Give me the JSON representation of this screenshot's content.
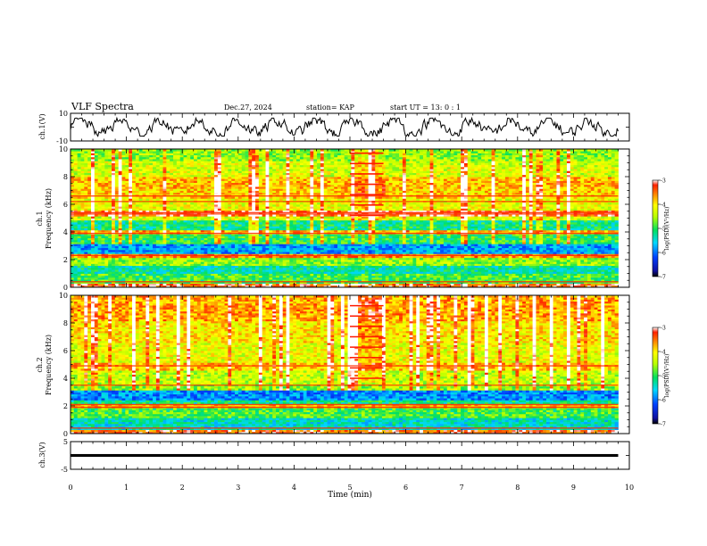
{
  "header": {
    "title": "VLF Spectra",
    "date": "Dec.27, 2024",
    "station": "station= KAP",
    "start": "start  UT  =   13: 0  : 1"
  },
  "chart_data": [
    {
      "type": "line",
      "name": "ch1-waveform",
      "ylabel": "ch.1(V)",
      "ylim": [
        -10,
        10
      ],
      "yticks": [
        "10",
        "-10"
      ],
      "xlim": [
        0,
        10
      ],
      "data_extent_min": [
        0,
        9.8
      ],
      "description_series": "noisy signal oscillating roughly between -6 and 6 V"
    },
    {
      "type": "heatmap",
      "name": "ch1-spectrogram",
      "ylabel_line1": "ch.1",
      "ylabel_line2": "Frequency (kHz)",
      "ylim": [
        0,
        10
      ],
      "yticks": [
        "0",
        "2",
        "4",
        "6",
        "8",
        "10"
      ],
      "xlim": [
        0,
        10
      ],
      "data_extent_min": [
        0,
        9.8
      ],
      "colorbar": {
        "label": "log(PSD)(V²/Hz)",
        "range": [
          -7,
          -3
        ],
        "ticks": [
          "-3",
          "-4",
          "-5",
          "-6",
          "-7"
        ]
      },
      "bands": [
        {
          "f0": 0,
          "f1": 0.3,
          "level": -3.3
        },
        {
          "f0": 0.3,
          "f1": 1.0,
          "level": -4.9
        },
        {
          "f0": 1.0,
          "f1": 1.6,
          "level": -5.3
        },
        {
          "f0": 1.6,
          "f1": 2.2,
          "level": -4.6
        },
        {
          "f0": 2.2,
          "f1": 2.4,
          "level": -3.6
        },
        {
          "f0": 2.4,
          "f1": 3.2,
          "level": -5.8
        },
        {
          "f0": 3.2,
          "f1": 3.8,
          "level": -5.0
        },
        {
          "f0": 3.8,
          "f1": 4.1,
          "level": -3.7
        },
        {
          "f0": 4.1,
          "f1": 4.8,
          "level": -5.2
        },
        {
          "f0": 4.8,
          "f1": 5.2,
          "level": -4.3
        },
        {
          "f0": 5.2,
          "f1": 5.6,
          "level": -3.3
        },
        {
          "f0": 5.6,
          "f1": 6.4,
          "level": -4.2
        },
        {
          "f0": 6.4,
          "f1": 7.2,
          "level": -3.9
        },
        {
          "f0": 7.2,
          "f1": 8.0,
          "level": -3.8
        },
        {
          "f0": 8.0,
          "f1": 9.2,
          "level": -4.3
        },
        {
          "f0": 9.2,
          "f1": 10.0,
          "level": -4.6
        }
      ],
      "lines_khz": [
        5.4,
        5.3,
        3.9,
        2.3,
        0.4,
        6.2,
        6.6
      ],
      "burst": {
        "t0": 5.0,
        "t1": 5.6,
        "f0": 4.8,
        "f1": 10
      }
    },
    {
      "type": "heatmap",
      "name": "ch2-spectrogram",
      "ylabel_line1": "ch.2",
      "ylabel_line2": "Frequency (kHz)",
      "ylim": [
        0,
        10
      ],
      "yticks": [
        "0",
        "2",
        "4",
        "6",
        "8",
        "10"
      ],
      "xlim": [
        0,
        10
      ],
      "data_extent_min": [
        0,
        9.8
      ],
      "colorbar": {
        "label": "log(PSD)(V²/Hz)",
        "range": [
          -7,
          -3
        ],
        "ticks": [
          "-3",
          "-4",
          "-5",
          "-6",
          "-7"
        ]
      },
      "bands": [
        {
          "f0": 0,
          "f1": 0.3,
          "level": -3.4
        },
        {
          "f0": 0.3,
          "f1": 1.2,
          "level": -5.4
        },
        {
          "f0": 1.2,
          "f1": 1.8,
          "level": -4.9
        },
        {
          "f0": 1.8,
          "f1": 2.1,
          "level": -3.8
        },
        {
          "f0": 2.1,
          "f1": 2.5,
          "level": -5.2
        },
        {
          "f0": 2.5,
          "f1": 3.2,
          "level": -5.9
        },
        {
          "f0": 3.2,
          "f1": 3.6,
          "level": -4.6
        },
        {
          "f0": 3.6,
          "f1": 4.6,
          "level": -4.4
        },
        {
          "f0": 4.6,
          "f1": 5.2,
          "level": -3.8
        },
        {
          "f0": 5.2,
          "f1": 6.6,
          "level": -4.2
        },
        {
          "f0": 6.6,
          "f1": 8.2,
          "level": -4.0
        },
        {
          "f0": 8.2,
          "f1": 10.0,
          "level": -3.7
        }
      ],
      "lines_khz": [
        4.9,
        3.5,
        2.1,
        1.9,
        0.4
      ],
      "burst": {
        "t0": 5.0,
        "t1": 5.6,
        "f0": 3.6,
        "f1": 10
      }
    },
    {
      "type": "line",
      "name": "ch3-waveform",
      "ylabel": "ch.3(V)",
      "ylim": [
        -5,
        5
      ],
      "yticks": [
        "5",
        "-5"
      ],
      "xlim": [
        0,
        10
      ],
      "data_extent_min": [
        0,
        9.8
      ],
      "description_series": "nearly constant level around 0 V"
    }
  ],
  "xaxis": {
    "label": "Time  (min)",
    "ticks": [
      "0",
      "1",
      "2",
      "3",
      "4",
      "5",
      "6",
      "7",
      "8",
      "9",
      "10"
    ]
  }
}
